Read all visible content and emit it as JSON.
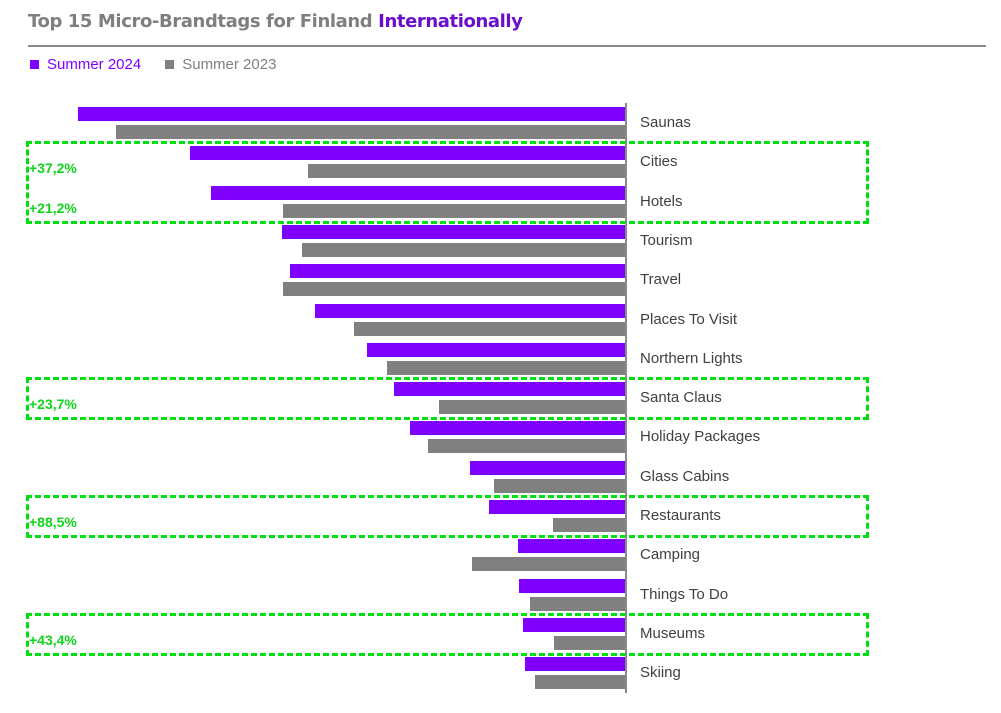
{
  "title": {
    "prefix": "Top 15 Micro-Brandtags for Finland ",
    "highlight": "Internationally"
  },
  "legend": [
    {
      "label": "Summer 2024",
      "color": "#7f00ff"
    },
    {
      "label": "Summer 2023",
      "color": "#808080"
    }
  ],
  "highlights": [
    {
      "categories": [
        "Cities",
        "Hotels"
      ],
      "labels": [
        "+37,2%",
        "+21,2%"
      ]
    },
    {
      "categories": [
        "Santa Claus"
      ],
      "labels": [
        "+23,7%"
      ]
    },
    {
      "categories": [
        "Restaurants"
      ],
      "labels": [
        "+88,5%"
      ]
    },
    {
      "categories": [
        "Museums"
      ],
      "labels": [
        "+43,4%"
      ]
    }
  ],
  "chart_data": {
    "type": "bar",
    "orientation": "horizontal",
    "title": "Top 15 Micro-Brandtags for Finland Internationally",
    "xlabel": "",
    "ylabel": "",
    "grid": false,
    "legend_position": "top-left",
    "value_units": "relative (no axis scale shown; values = bar length in px)",
    "categories": [
      "Saunas",
      "Cities",
      "Hotels",
      "Tourism",
      "Travel",
      "Places To Visit",
      "Northern Lights",
      "Santa Claus",
      "Holiday Packages",
      "Glass Cabins",
      "Restaurants",
      "Camping",
      "Things To Do",
      "Museums",
      "Skiing"
    ],
    "series": [
      {
        "name": "Summer 2024",
        "color": "#7f00ff",
        "values": [
          547,
          435,
          414,
          343,
          335,
          310,
          258,
          231,
          215,
          155,
          136,
          107,
          106,
          102,
          100
        ]
      },
      {
        "name": "Summer 2023",
        "color": "#808080",
        "values": [
          509,
          317,
          342,
          323,
          342,
          271,
          238,
          186,
          197,
          131,
          72,
          153,
          95,
          71,
          90
        ]
      }
    ],
    "annotations": [
      {
        "category": "Cities",
        "text": "+37,2%"
      },
      {
        "category": "Hotels",
        "text": "+21,2%"
      },
      {
        "category": "Santa Claus",
        "text": "+23,7%"
      },
      {
        "category": "Restaurants",
        "text": "+88,5%"
      },
      {
        "category": "Museums",
        "text": "+43,4%"
      }
    ]
  }
}
